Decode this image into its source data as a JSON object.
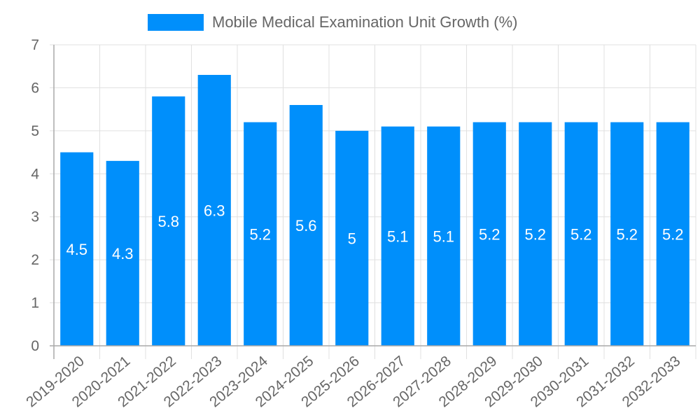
{
  "legend": {
    "label": "Mobile Medical Examination Unit Growth (%)",
    "color": "#008ffb"
  },
  "colors": {
    "bar": "#008ffb",
    "grid": "#e0e0e0",
    "axis": "#a9a9a9",
    "text": "#666666",
    "label": "#ffffff"
  },
  "chart_data": {
    "type": "bar",
    "title": "",
    "xlabel": "",
    "ylabel": "",
    "ylim": [
      0,
      7
    ],
    "yticks": [
      0,
      1,
      2,
      3,
      4,
      5,
      6,
      7
    ],
    "grid": true,
    "legend_position": "top",
    "categories": [
      "2019-2020",
      "2020-2021",
      "2021-2022",
      "2022-2023",
      "2023-2024",
      "2024-2025",
      "2025-2026",
      "2026-2027",
      "2027-2028",
      "2028-2029",
      "2029-2030",
      "2030-2031",
      "2031-2032",
      "2032-2033"
    ],
    "series": [
      {
        "name": "Mobile Medical Examination Unit Growth (%)",
        "values": [
          4.5,
          4.3,
          5.8,
          6.3,
          5.2,
          5.6,
          5,
          5.1,
          5.1,
          5.2,
          5.2,
          5.2,
          5.2,
          5.2
        ]
      }
    ],
    "data_labels": [
      "4.5",
      "4.3",
      "5.8",
      "6.3",
      "5.2",
      "5.6",
      "5",
      "5.1",
      "5.1",
      "5.2",
      "5.2",
      "5.2",
      "5.2",
      "5.2"
    ]
  }
}
